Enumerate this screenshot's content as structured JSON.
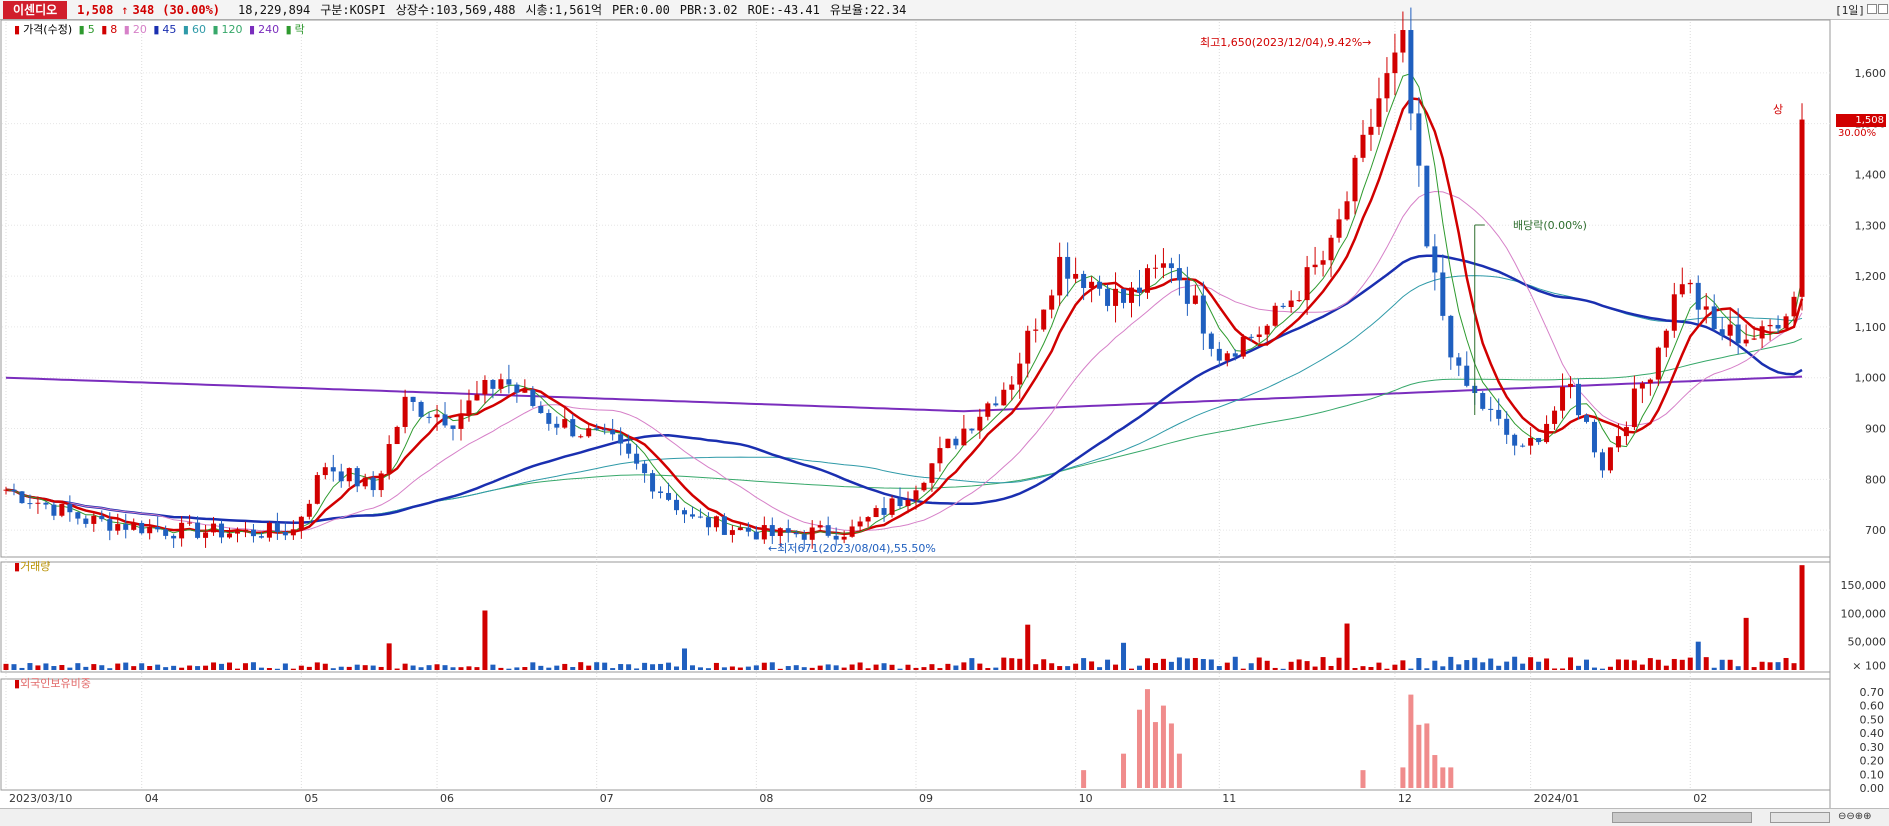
{
  "header": {
    "stock_name": "이센디오",
    "price": "1,508",
    "arrow": "↑",
    "change": "348",
    "change_pct": "(30.00%)",
    "volume": "18,229,894",
    "market": "구분:KOSPI",
    "shares": "상장수:103,569,488",
    "market_cap": "시총:1,561억",
    "per": "PER:0.00",
    "pbr": "PBR:3.02",
    "roe": "ROE:-43.41",
    "float_ratio": "유보율:22.34",
    "period": "[1일]"
  },
  "legend": {
    "price_label": "가격(수정)",
    "ma_items": [
      {
        "label": "5",
        "color": "#2e9a2e"
      },
      {
        "label": "8",
        "color": "#d10000"
      },
      {
        "label": "20",
        "color": "#d680c8"
      },
      {
        "label": "45",
        "color": "#1a2fb0"
      },
      {
        "label": "60",
        "color": "#2f9aa8"
      },
      {
        "label": "120",
        "color": "#37a86a"
      },
      {
        "label": "240",
        "color": "#7a2dbd"
      }
    ],
    "extra": "락"
  },
  "annotations": {
    "high": "최고1,650(2023/12/04),9.42%→",
    "low": "←최저671(2023/08/04),55.50%",
    "dividend": "배당락(0.00%)",
    "limit_up": "상"
  },
  "last_price_tag": "1,508",
  "last_price_pct": "30.00%",
  "volume_panel_title": "거래량",
  "foreign_panel_title": "외국인보유비중",
  "colors": {
    "up": "#d10000",
    "down": "#1f5fbf",
    "ma5": "#2e9a2e",
    "ma8": "#d10000",
    "ma20": "#d680c8",
    "ma45": "#1a2fb0",
    "ma60": "#2f9aa8",
    "ma120": "#37a86a",
    "ma240": "#7a2dbd",
    "foreign": "#f08c8c"
  },
  "chart_data": {
    "type": "candlestick",
    "price_axis": {
      "ticks": [
        "1,600",
        "1,500",
        "1,400",
        "1,300",
        "1,200",
        "1,100",
        "1,000",
        "900",
        "800",
        "700"
      ],
      "ylim": [
        655,
        1700
      ]
    },
    "volume_axis": {
      "ticks": [
        "150,000",
        "100,000",
        "50,000",
        "× 100"
      ],
      "ylim": [
        0,
        180000
      ]
    },
    "foreign_axis": {
      "ticks": [
        "0.70",
        "0.60",
        "0.50",
        "0.40",
        "0.30",
        "0.20",
        "0.10",
        "0.00"
      ],
      "ylim": [
        0,
        0.75
      ]
    },
    "x_labels": [
      "2023/03/10",
      "04",
      "05",
      "06",
      "07",
      "08",
      "09",
      "10",
      "11",
      "12",
      "2024/01",
      "02"
    ],
    "x_label_index": [
      0,
      17,
      37,
      54,
      74,
      94,
      114,
      134,
      152,
      174,
      191,
      211
    ],
    "price_waypoints": [
      [
        0,
        780
      ],
      [
        10,
        720
      ],
      [
        20,
        700
      ],
      [
        30,
        695
      ],
      [
        36,
        700
      ],
      [
        40,
        830
      ],
      [
        46,
        780
      ],
      [
        50,
        950
      ],
      [
        56,
        920
      ],
      [
        62,
        1000
      ],
      [
        68,
        920
      ],
      [
        76,
        870
      ],
      [
        86,
        720
      ],
      [
        96,
        690
      ],
      [
        106,
        700
      ],
      [
        112,
        760
      ],
      [
        120,
        900
      ],
      [
        126,
        1000
      ],
      [
        132,
        1230
      ],
      [
        140,
        1150
      ],
      [
        146,
        1230
      ],
      [
        152,
        1050
      ],
      [
        158,
        1100
      ],
      [
        166,
        1250
      ],
      [
        172,
        1550
      ],
      [
        175,
        1650
      ],
      [
        178,
        1250
      ],
      [
        182,
        1000
      ],
      [
        190,
        850
      ],
      [
        196,
        980
      ],
      [
        200,
        830
      ],
      [
        206,
        1020
      ],
      [
        210,
        1200
      ],
      [
        214,
        1090
      ],
      [
        220,
        1080
      ],
      [
        224,
        1160
      ],
      [
        225,
        1508
      ]
    ],
    "volume_spikes": {
      "48": 47000,
      "60": 105000,
      "85": 38000,
      "128": 80000,
      "140": 48000,
      "168": 82000,
      "225": 185000,
      "218": 92000,
      "212": 50000
    },
    "foreign_values": {
      "135": 0.13,
      "140": 0.25,
      "142": 0.57,
      "143": 0.72,
      "144": 0.48,
      "145": 0.6,
      "146": 0.47,
      "147": 0.25,
      "170": 0.13,
      "175": 0.15,
      "176": 0.68,
      "177": 0.46,
      "178": 0.47,
      "179": 0.24,
      "180": 0.15,
      "181": 0.15
    }
  }
}
